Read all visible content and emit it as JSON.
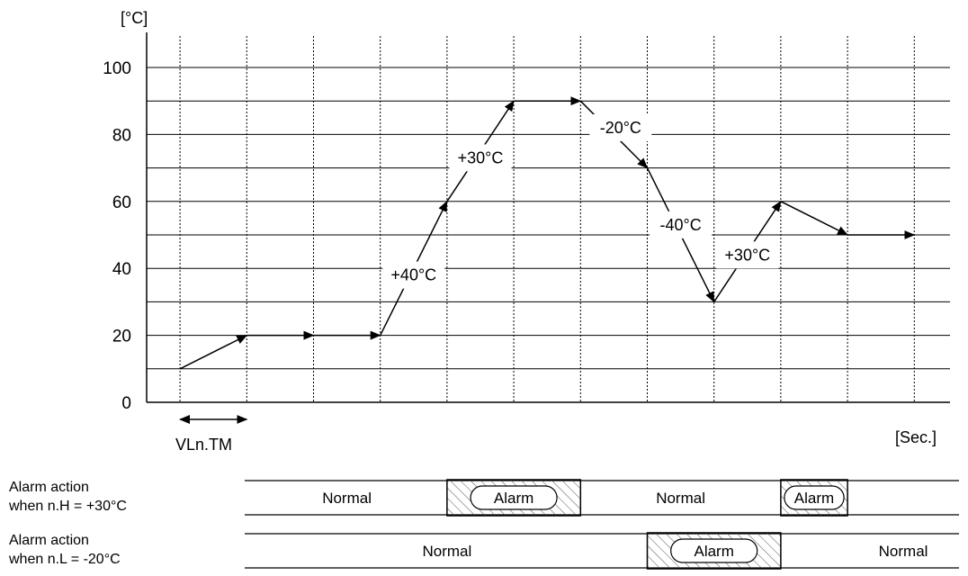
{
  "chart_data": {
    "type": "line",
    "y_unit_label": "[°C]",
    "x_unit_label": "[Sec.]",
    "ylim": [
      0,
      110
    ],
    "y_ticks": [
      0,
      20,
      40,
      60,
      80,
      100
    ],
    "x_range": [
      0,
      23
    ],
    "x_gridlines": [
      1,
      3,
      5,
      7,
      9,
      11,
      13,
      15,
      17,
      19,
      21,
      23
    ],
    "y_gridlines": [
      10,
      20,
      30,
      40,
      50,
      60,
      70,
      80,
      90,
      100
    ],
    "series": [
      {
        "points": [
          {
            "x": 1,
            "y": 10
          },
          {
            "x": 3,
            "y": 20
          },
          {
            "x": 5,
            "y": 20
          },
          {
            "x": 7,
            "y": 20
          },
          {
            "x": 9,
            "y": 60
          },
          {
            "x": 11,
            "y": 90
          },
          {
            "x": 13,
            "y": 90
          },
          {
            "x": 15,
            "y": 70
          },
          {
            "x": 17,
            "y": 30
          },
          {
            "x": 19,
            "y": 60
          },
          {
            "x": 21,
            "y": 50
          },
          {
            "x": 23,
            "y": 50
          }
        ]
      }
    ],
    "annotations": [
      {
        "text": "+40°C",
        "x": 8.0,
        "y": 38
      },
      {
        "text": "+30°C",
        "x": 10.0,
        "y": 73
      },
      {
        "text": "-20°C",
        "x": 14.2,
        "y": 82
      },
      {
        "text": "-40°C",
        "x": 16.0,
        "y": 53
      },
      {
        "text": "+30°C",
        "x": 18.0,
        "y": 44
      }
    ],
    "interval_marker": {
      "label": "VLn.TM",
      "from_x": 1,
      "to_x": 3
    }
  },
  "alarm_rows": [
    {
      "label_line1": "Alarm action",
      "label_line2": "when n.H = +30°C",
      "segments": [
        {
          "text": "Normal",
          "from_x": 3,
          "to_x": 9,
          "alarm": false
        },
        {
          "text": "Alarm",
          "from_x": 9,
          "to_x": 13,
          "alarm": true
        },
        {
          "text": "Normal",
          "from_x": 13,
          "to_x": 19,
          "alarm": false
        },
        {
          "text": "Alarm",
          "from_x": 19,
          "to_x": 21,
          "alarm": true
        }
      ]
    },
    {
      "label_line1": "Alarm action",
      "label_line2": "when n.L = -20°C",
      "segments": [
        {
          "text": "Normal",
          "from_x": 3,
          "to_x": 15,
          "alarm": false
        },
        {
          "text": "Alarm",
          "from_x": 15,
          "to_x": 19,
          "alarm": true
        },
        {
          "text": "Normal",
          "from_x": 21,
          "to_x": 26,
          "alarm": false
        }
      ]
    }
  ]
}
